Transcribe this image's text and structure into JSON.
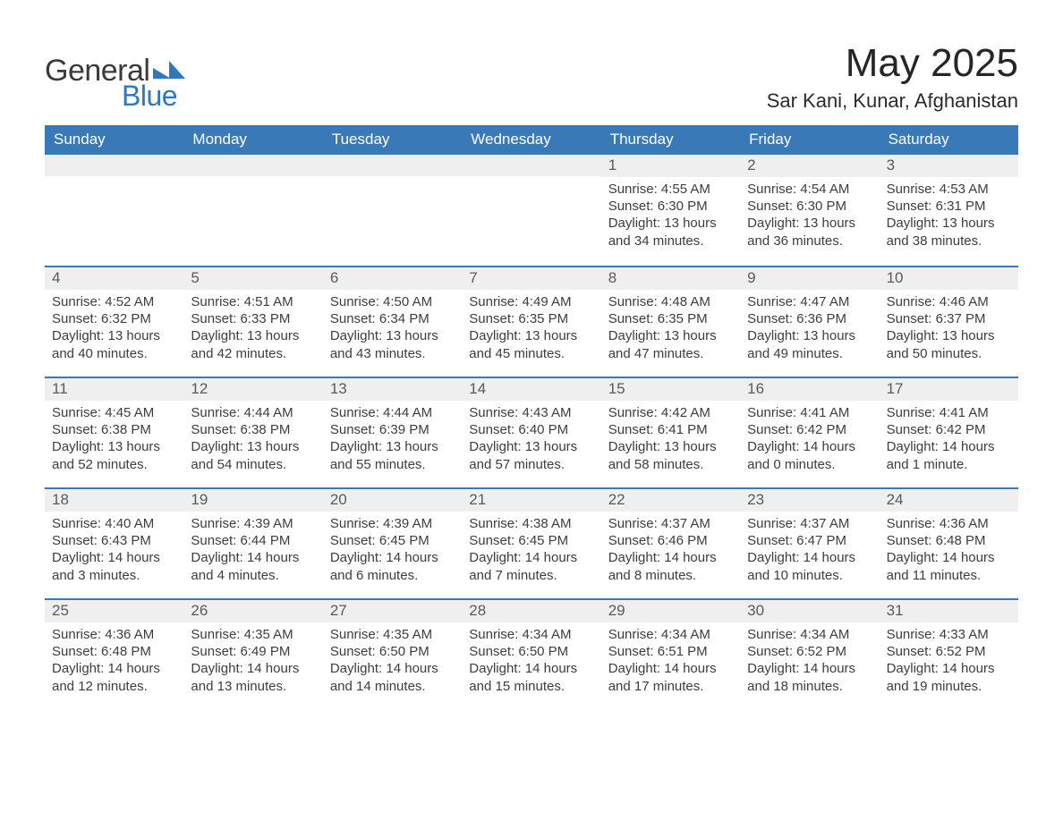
{
  "logo": {
    "line1": "General",
    "line2": "Blue",
    "accent_color": "#2f78bd"
  },
  "title": "May 2025",
  "location": "Sar Kani, Kunar, Afghanistan",
  "colors": {
    "header_bg": "#3a79b7",
    "header_text": "#ffffff",
    "daynum_bg": "#efefef",
    "week_border": "#3a79b7",
    "text": "#333333"
  },
  "dayheads": [
    "Sunday",
    "Monday",
    "Tuesday",
    "Wednesday",
    "Thursday",
    "Friday",
    "Saturday"
  ],
  "weeks": [
    [
      {
        "empty": true
      },
      {
        "empty": true
      },
      {
        "empty": true
      },
      {
        "empty": true
      },
      {
        "day": "1",
        "sunrise": "Sunrise: 4:55 AM",
        "sunset": "Sunset: 6:30 PM",
        "daylight": "Daylight: 13 hours and 34 minutes."
      },
      {
        "day": "2",
        "sunrise": "Sunrise: 4:54 AM",
        "sunset": "Sunset: 6:30 PM",
        "daylight": "Daylight: 13 hours and 36 minutes."
      },
      {
        "day": "3",
        "sunrise": "Sunrise: 4:53 AM",
        "sunset": "Sunset: 6:31 PM",
        "daylight": "Daylight: 13 hours and 38 minutes."
      }
    ],
    [
      {
        "day": "4",
        "sunrise": "Sunrise: 4:52 AM",
        "sunset": "Sunset: 6:32 PM",
        "daylight": "Daylight: 13 hours and 40 minutes."
      },
      {
        "day": "5",
        "sunrise": "Sunrise: 4:51 AM",
        "sunset": "Sunset: 6:33 PM",
        "daylight": "Daylight: 13 hours and 42 minutes."
      },
      {
        "day": "6",
        "sunrise": "Sunrise: 4:50 AM",
        "sunset": "Sunset: 6:34 PM",
        "daylight": "Daylight: 13 hours and 43 minutes."
      },
      {
        "day": "7",
        "sunrise": "Sunrise: 4:49 AM",
        "sunset": "Sunset: 6:35 PM",
        "daylight": "Daylight: 13 hours and 45 minutes."
      },
      {
        "day": "8",
        "sunrise": "Sunrise: 4:48 AM",
        "sunset": "Sunset: 6:35 PM",
        "daylight": "Daylight: 13 hours and 47 minutes."
      },
      {
        "day": "9",
        "sunrise": "Sunrise: 4:47 AM",
        "sunset": "Sunset: 6:36 PM",
        "daylight": "Daylight: 13 hours and 49 minutes."
      },
      {
        "day": "10",
        "sunrise": "Sunrise: 4:46 AM",
        "sunset": "Sunset: 6:37 PM",
        "daylight": "Daylight: 13 hours and 50 minutes."
      }
    ],
    [
      {
        "day": "11",
        "sunrise": "Sunrise: 4:45 AM",
        "sunset": "Sunset: 6:38 PM",
        "daylight": "Daylight: 13 hours and 52 minutes."
      },
      {
        "day": "12",
        "sunrise": "Sunrise: 4:44 AM",
        "sunset": "Sunset: 6:38 PM",
        "daylight": "Daylight: 13 hours and 54 minutes."
      },
      {
        "day": "13",
        "sunrise": "Sunrise: 4:44 AM",
        "sunset": "Sunset: 6:39 PM",
        "daylight": "Daylight: 13 hours and 55 minutes."
      },
      {
        "day": "14",
        "sunrise": "Sunrise: 4:43 AM",
        "sunset": "Sunset: 6:40 PM",
        "daylight": "Daylight: 13 hours and 57 minutes."
      },
      {
        "day": "15",
        "sunrise": "Sunrise: 4:42 AM",
        "sunset": "Sunset: 6:41 PM",
        "daylight": "Daylight: 13 hours and 58 minutes."
      },
      {
        "day": "16",
        "sunrise": "Sunrise: 4:41 AM",
        "sunset": "Sunset: 6:42 PM",
        "daylight": "Daylight: 14 hours and 0 minutes."
      },
      {
        "day": "17",
        "sunrise": "Sunrise: 4:41 AM",
        "sunset": "Sunset: 6:42 PM",
        "daylight": "Daylight: 14 hours and 1 minute."
      }
    ],
    [
      {
        "day": "18",
        "sunrise": "Sunrise: 4:40 AM",
        "sunset": "Sunset: 6:43 PM",
        "daylight": "Daylight: 14 hours and 3 minutes."
      },
      {
        "day": "19",
        "sunrise": "Sunrise: 4:39 AM",
        "sunset": "Sunset: 6:44 PM",
        "daylight": "Daylight: 14 hours and 4 minutes."
      },
      {
        "day": "20",
        "sunrise": "Sunrise: 4:39 AM",
        "sunset": "Sunset: 6:45 PM",
        "daylight": "Daylight: 14 hours and 6 minutes."
      },
      {
        "day": "21",
        "sunrise": "Sunrise: 4:38 AM",
        "sunset": "Sunset: 6:45 PM",
        "daylight": "Daylight: 14 hours and 7 minutes."
      },
      {
        "day": "22",
        "sunrise": "Sunrise: 4:37 AM",
        "sunset": "Sunset: 6:46 PM",
        "daylight": "Daylight: 14 hours and 8 minutes."
      },
      {
        "day": "23",
        "sunrise": "Sunrise: 4:37 AM",
        "sunset": "Sunset: 6:47 PM",
        "daylight": "Daylight: 14 hours and 10 minutes."
      },
      {
        "day": "24",
        "sunrise": "Sunrise: 4:36 AM",
        "sunset": "Sunset: 6:48 PM",
        "daylight": "Daylight: 14 hours and 11 minutes."
      }
    ],
    [
      {
        "day": "25",
        "sunrise": "Sunrise: 4:36 AM",
        "sunset": "Sunset: 6:48 PM",
        "daylight": "Daylight: 14 hours and 12 minutes."
      },
      {
        "day": "26",
        "sunrise": "Sunrise: 4:35 AM",
        "sunset": "Sunset: 6:49 PM",
        "daylight": "Daylight: 14 hours and 13 minutes."
      },
      {
        "day": "27",
        "sunrise": "Sunrise: 4:35 AM",
        "sunset": "Sunset: 6:50 PM",
        "daylight": "Daylight: 14 hours and 14 minutes."
      },
      {
        "day": "28",
        "sunrise": "Sunrise: 4:34 AM",
        "sunset": "Sunset: 6:50 PM",
        "daylight": "Daylight: 14 hours and 15 minutes."
      },
      {
        "day": "29",
        "sunrise": "Sunrise: 4:34 AM",
        "sunset": "Sunset: 6:51 PM",
        "daylight": "Daylight: 14 hours and 17 minutes."
      },
      {
        "day": "30",
        "sunrise": "Sunrise: 4:34 AM",
        "sunset": "Sunset: 6:52 PM",
        "daylight": "Daylight: 14 hours and 18 minutes."
      },
      {
        "day": "31",
        "sunrise": "Sunrise: 4:33 AM",
        "sunset": "Sunset: 6:52 PM",
        "daylight": "Daylight: 14 hours and 19 minutes."
      }
    ]
  ]
}
